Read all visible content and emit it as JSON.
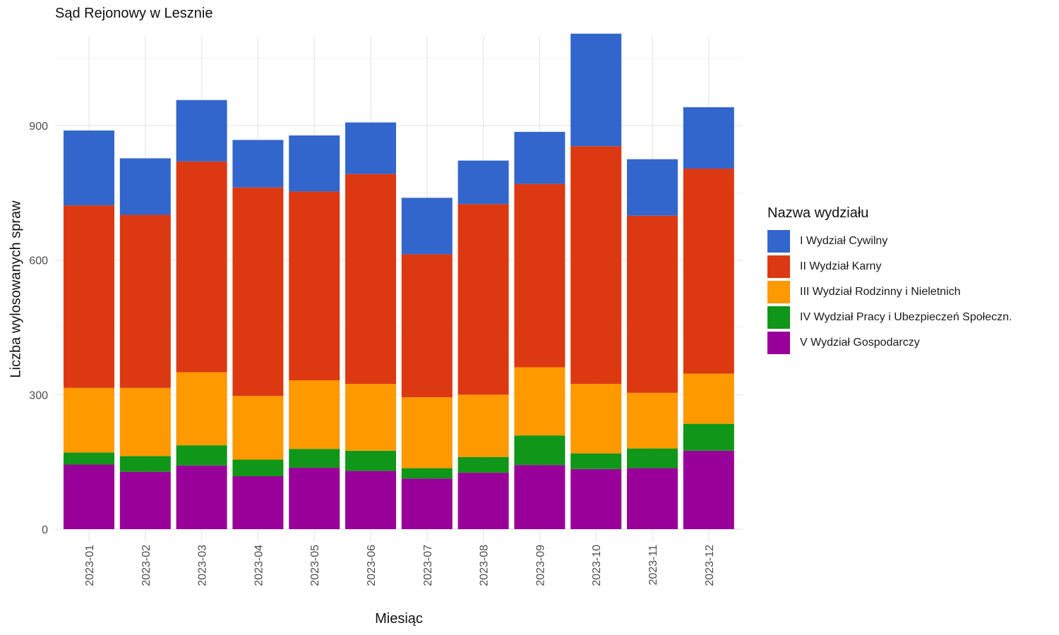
{
  "chart_data": {
    "type": "bar",
    "stacked": true,
    "title": "Sąd Rejonowy w Lesznie",
    "xlabel": "Miesiąc",
    "ylabel": "Liczba wylosowanych spraw",
    "ylim": [
      0,
      1100
    ],
    "yticks": [
      0,
      300,
      600,
      900
    ],
    "grid": true,
    "legend_title": "Nazwa wydziału",
    "legend_position": "right",
    "categories": [
      "2023-01",
      "2023-02",
      "2023-03",
      "2023-04",
      "2023-05",
      "2023-06",
      "2023-07",
      "2023-08",
      "2023-09",
      "2023-10",
      "2023-11",
      "2023-12"
    ],
    "series": [
      {
        "name": "V Wydział Gospodarczy",
        "color": "#990099",
        "values": [
          144,
          128,
          142,
          118,
          137,
          130,
          113,
          126,
          143,
          134,
          136,
          175
        ]
      },
      {
        "name": "IV Wydział Pracy i Ubezpieczeń Społeczn.",
        "color": "#109618",
        "values": [
          27,
          35,
          45,
          37,
          42,
          45,
          23,
          35,
          66,
          35,
          44,
          60
        ]
      },
      {
        "name": "III Wydział Rodzinny i Nieletnich",
        "color": "#FF9900",
        "values": [
          144,
          152,
          163,
          142,
          153,
          149,
          158,
          139,
          152,
          155,
          124,
          112
        ]
      },
      {
        "name": "II Wydział Karny",
        "color": "#DC3912",
        "values": [
          407,
          386,
          470,
          465,
          421,
          468,
          319,
          425,
          409,
          530,
          395,
          457
        ]
      },
      {
        "name": "I Wydział Cywilny",
        "color": "#3366CC",
        "values": [
          167,
          126,
          137,
          106,
          125,
          115,
          126,
          97,
          116,
          251,
          126,
          137
        ]
      }
    ]
  }
}
